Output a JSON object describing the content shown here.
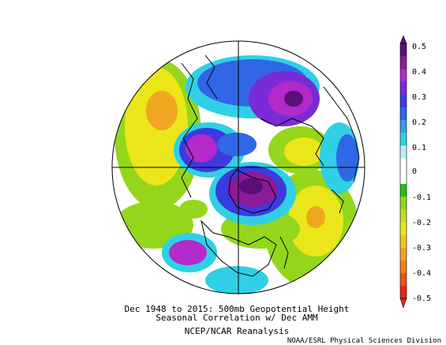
{
  "title_line1": "Dec 1948 to 2015: 500mb Geopotential Height",
  "title_line2": "Seasonal Correlation w/ Dec AMM",
  "title_line3": "NCEP/NCAR Reanalysis",
  "credit": "NOAA/ESRL Physical Sciences Division",
  "colorbar": {
    "tick_labels": [
      "0.5",
      "0.4",
      "0.3",
      "0.2",
      "0.1",
      "0",
      "-0.1",
      "-0.2",
      "-0.3",
      "-0.4",
      "-0.5"
    ],
    "colors": [
      "#5a0f78",
      "#8c1a99",
      "#b329c9",
      "#7a2ad6",
      "#3b3be0",
      "#2f67e6",
      "#3a9ce8",
      "#2fd0e6",
      "#b8f2f2",
      "#ffffff",
      "#ffffff",
      "#22c01e",
      "#94d61c",
      "#c3dc1e",
      "#ebe61a",
      "#f4c61e",
      "#f0a622",
      "#ee7f1a",
      "#e8551a",
      "#e02a12"
    ]
  },
  "colors": {
    "coast": "#000000",
    "grid": "#000000"
  }
}
